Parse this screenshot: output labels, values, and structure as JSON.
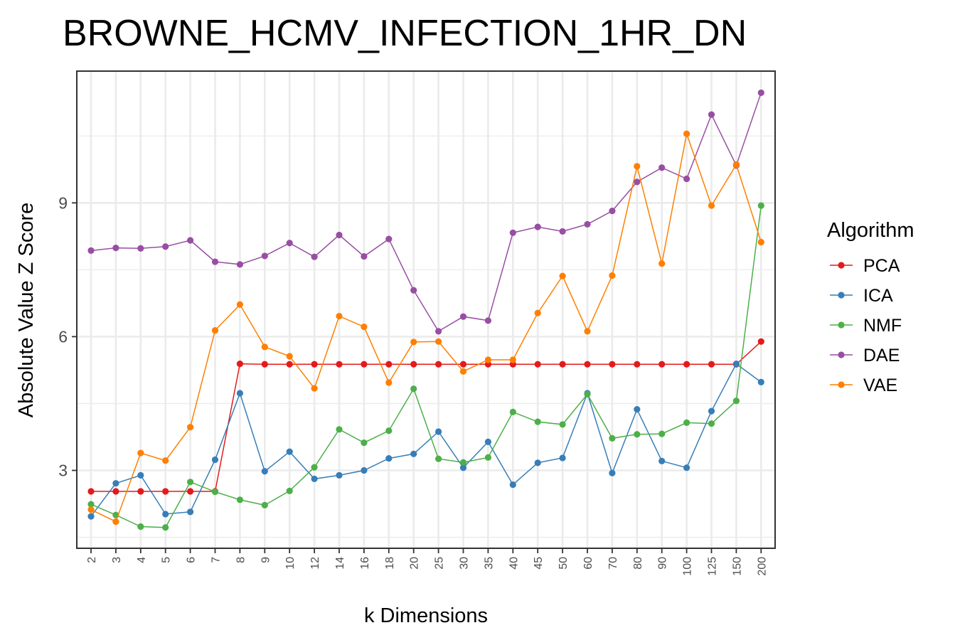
{
  "chart_data": {
    "type": "line",
    "title": "BROWNE_HCMV_INFECTION_1HR_DN",
    "xlabel": "k Dimensions",
    "ylabel": "Absolute Value Z Score",
    "categories": [
      "2",
      "3",
      "4",
      "5",
      "6",
      "7",
      "8",
      "9",
      "10",
      "12",
      "14",
      "16",
      "18",
      "20",
      "25",
      "30",
      "35",
      "40",
      "45",
      "50",
      "60",
      "70",
      "80",
      "90",
      "100",
      "125",
      "150",
      "200"
    ],
    "yticks": [
      3,
      6,
      9
    ],
    "ylim": [
      1.4,
      11.9
    ],
    "grid": true,
    "legend": {
      "title": "Algorithm",
      "position": "right"
    },
    "series": [
      {
        "name": "PCA",
        "color": "#E41A1C",
        "values": [
          2.53,
          2.53,
          2.53,
          2.53,
          2.53,
          2.53,
          5.39,
          5.38,
          5.38,
          5.38,
          5.38,
          5.38,
          5.38,
          5.38,
          5.38,
          5.38,
          5.38,
          5.38,
          5.38,
          5.38,
          5.38,
          5.38,
          5.38,
          5.38,
          5.38,
          5.38,
          5.38,
          5.89
        ]
      },
      {
        "name": "ICA",
        "color": "#377EB8",
        "values": [
          1.97,
          2.71,
          2.89,
          2.02,
          2.07,
          3.24,
          4.73,
          2.98,
          3.42,
          2.81,
          2.89,
          3.0,
          3.27,
          3.37,
          3.87,
          3.06,
          3.64,
          2.68,
          3.17,
          3.28,
          4.73,
          2.94,
          4.37,
          3.21,
          3.06,
          4.33,
          5.39,
          4.98
        ]
      },
      {
        "name": "NMF",
        "color": "#4DAF4A",
        "values": [
          2.24,
          2.0,
          1.74,
          1.72,
          2.74,
          2.52,
          2.34,
          2.22,
          2.54,
          3.07,
          3.92,
          3.62,
          3.89,
          4.83,
          3.26,
          3.18,
          3.29,
          4.31,
          4.09,
          4.03,
          4.71,
          3.72,
          3.81,
          3.82,
          4.07,
          4.05,
          4.56,
          8.94
        ]
      },
      {
        "name": "DAE",
        "color": "#984EA3",
        "values": [
          7.93,
          7.99,
          7.98,
          8.02,
          8.16,
          7.68,
          7.62,
          7.81,
          8.1,
          7.79,
          8.28,
          7.8,
          8.19,
          7.04,
          6.12,
          6.45,
          6.36,
          8.33,
          8.46,
          8.36,
          8.52,
          8.82,
          9.47,
          9.79,
          9.54,
          10.98,
          9.84,
          11.47
        ]
      },
      {
        "name": "VAE",
        "color": "#FF7F00",
        "values": [
          2.12,
          1.85,
          3.39,
          3.22,
          3.97,
          6.14,
          6.72,
          5.77,
          5.56,
          4.84,
          6.46,
          6.22,
          4.97,
          5.88,
          5.89,
          5.22,
          5.48,
          5.48,
          6.53,
          7.36,
          6.12,
          7.37,
          9.82,
          7.64,
          10.55,
          8.94,
          9.86,
          8.12
        ]
      }
    ]
  }
}
